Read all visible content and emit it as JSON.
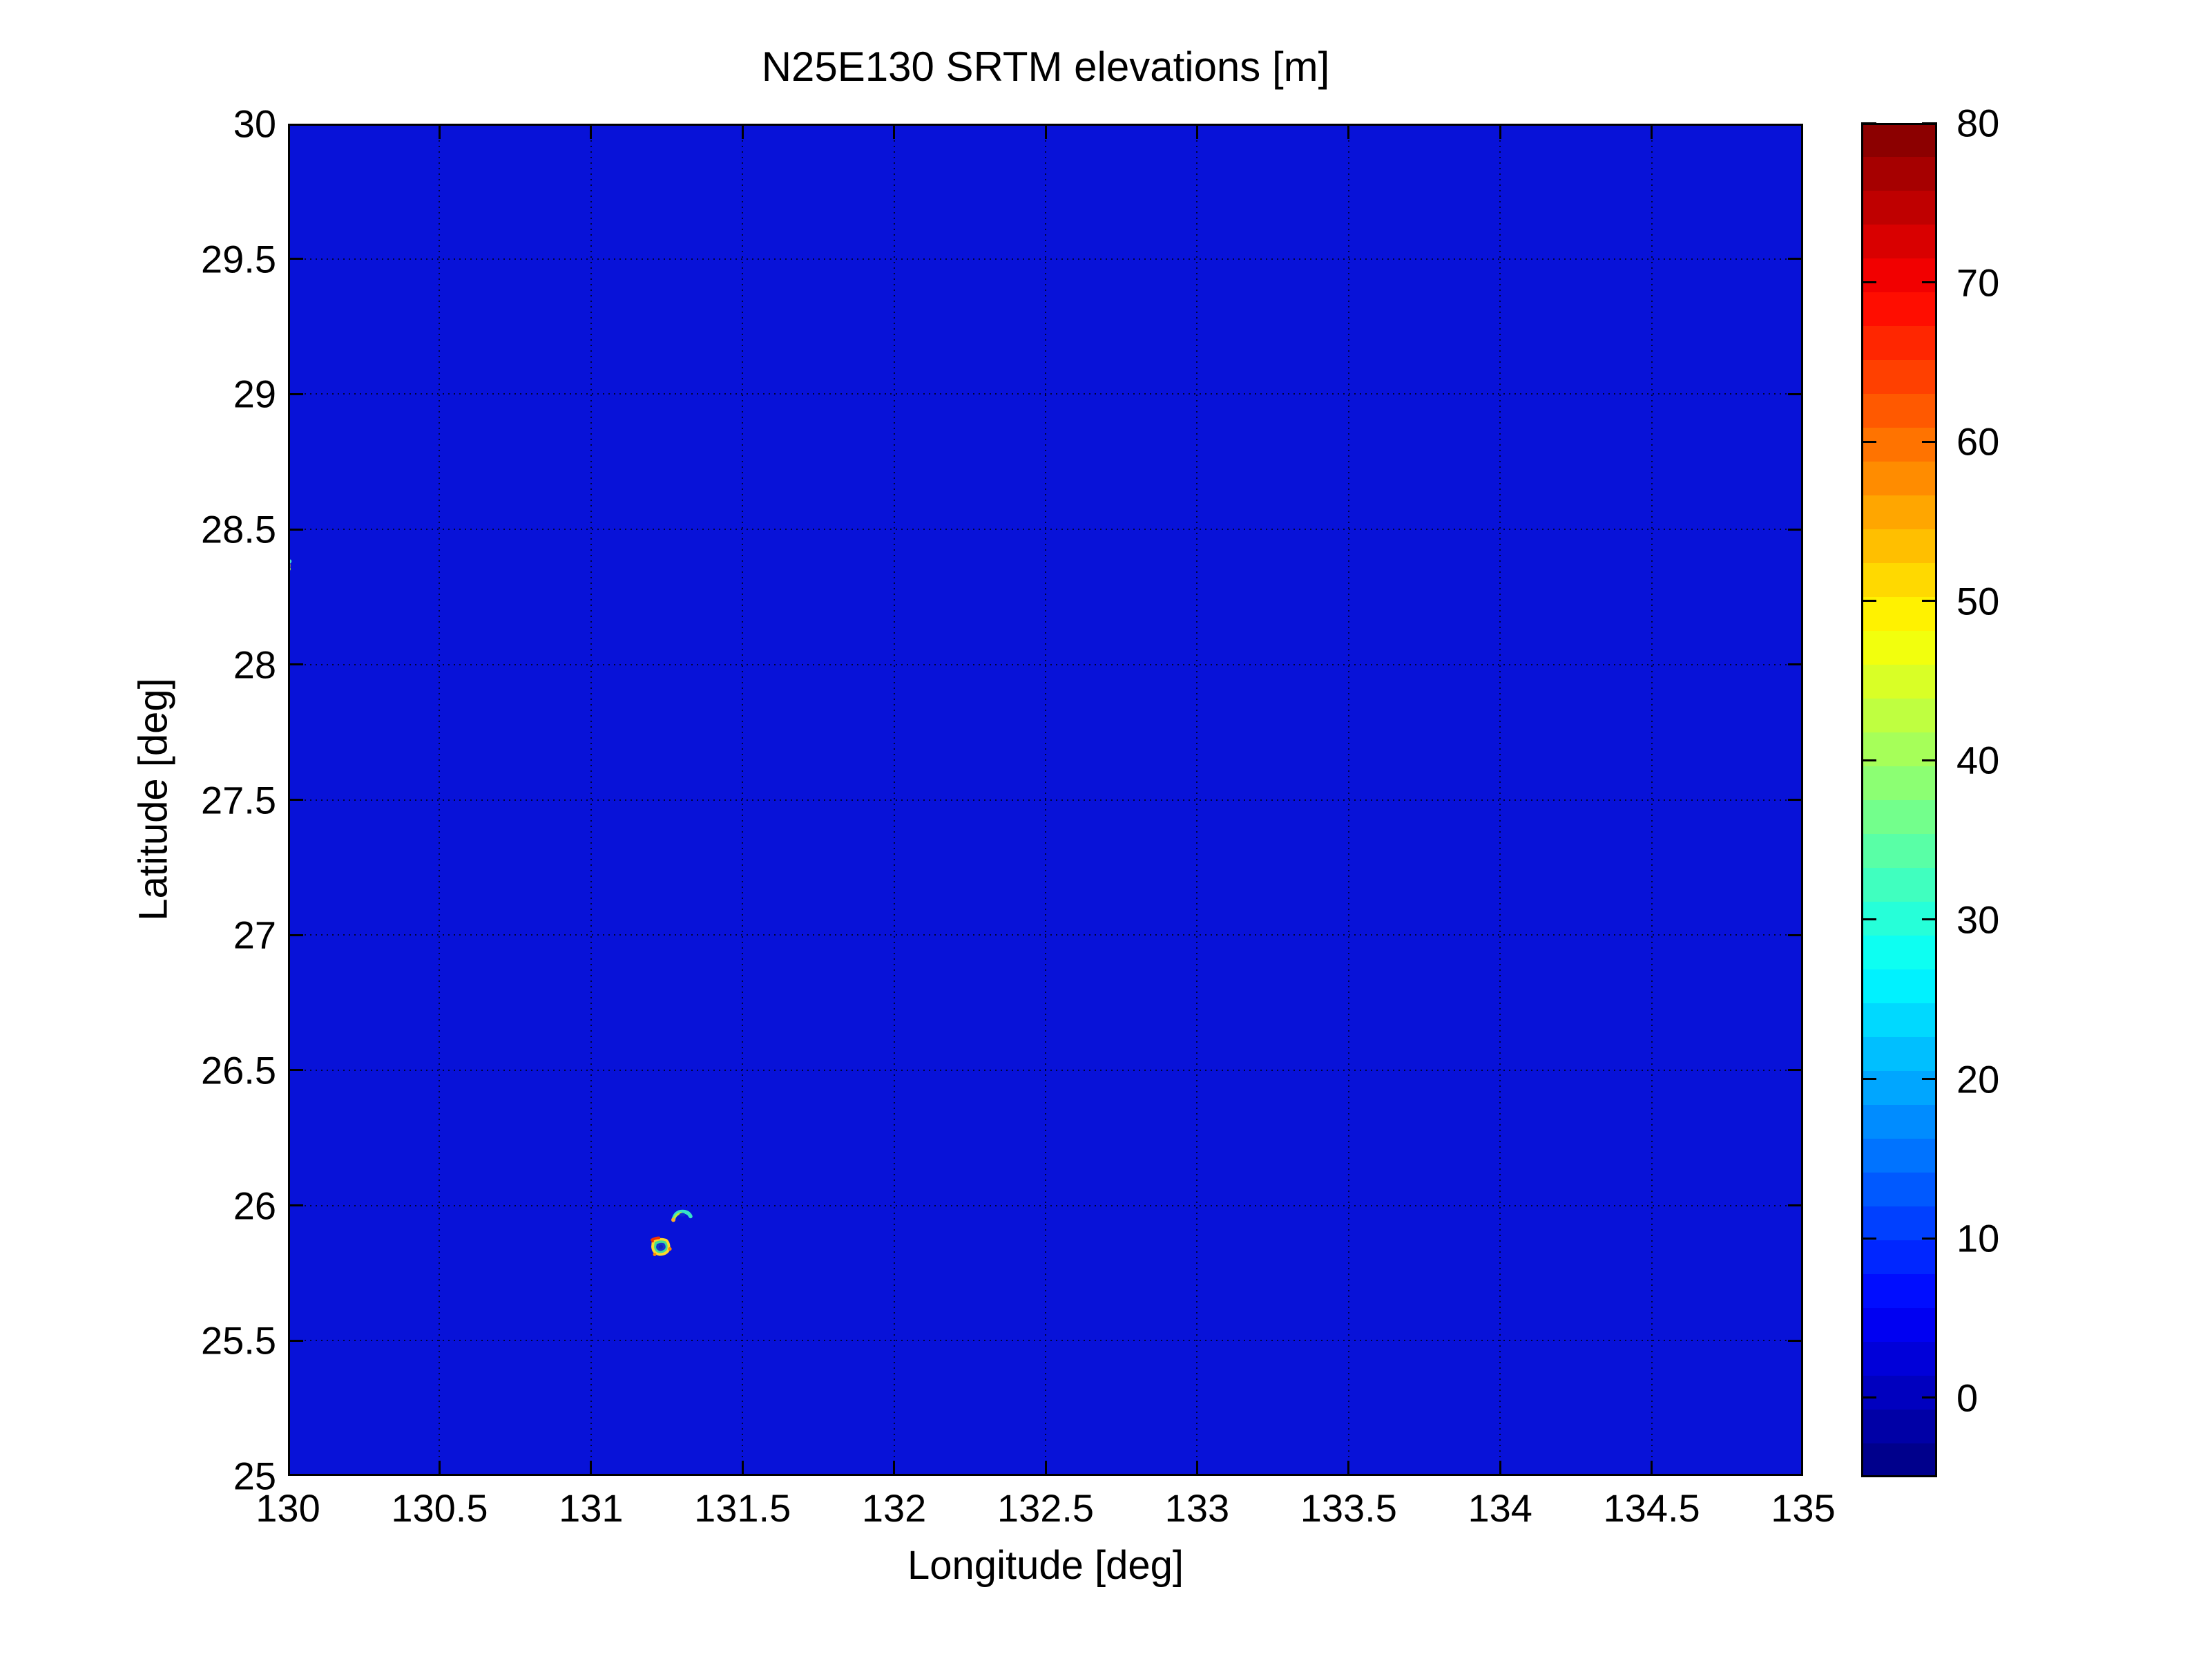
{
  "figure": {
    "title": "N25E130 SRTM elevations [m]",
    "xlabel": "Longitude [deg]",
    "ylabel": "Latitude [deg]",
    "background": "#ffffff"
  },
  "axes": {
    "xlim": [
      130,
      135
    ],
    "ylim": [
      25,
      30
    ],
    "x_ticks": [
      {
        "v": 130,
        "label": "130"
      },
      {
        "v": 130.5,
        "label": "130.5"
      },
      {
        "v": 131,
        "label": "131"
      },
      {
        "v": 131.5,
        "label": "131.5"
      },
      {
        "v": 132,
        "label": "132"
      },
      {
        "v": 132.5,
        "label": "132.5"
      },
      {
        "v": 133,
        "label": "133"
      },
      {
        "v": 133.5,
        "label": "133.5"
      },
      {
        "v": 134,
        "label": "134"
      },
      {
        "v": 134.5,
        "label": "134.5"
      },
      {
        "v": 135,
        "label": "135"
      }
    ],
    "y_ticks": [
      {
        "v": 25,
        "label": "25"
      },
      {
        "v": 25.5,
        "label": "25.5"
      },
      {
        "v": 26,
        "label": "26"
      },
      {
        "v": 26.5,
        "label": "26.5"
      },
      {
        "v": 27,
        "label": "27"
      },
      {
        "v": 27.5,
        "label": "27.5"
      },
      {
        "v": 28,
        "label": "28"
      },
      {
        "v": 28.5,
        "label": "28.5"
      },
      {
        "v": 29,
        "label": "29"
      },
      {
        "v": 29.5,
        "label": "29.5"
      },
      {
        "v": 30,
        "label": "30"
      }
    ],
    "grid_style": "dotted",
    "sea_color": "#0812d8",
    "grid_dot_color": "rgba(0,0,15,0.8)",
    "tick_color": "#000000"
  },
  "colorbar": {
    "colormap": "jet",
    "min": -5,
    "max": 80,
    "bands": 40,
    "ticks": [
      {
        "v": 0,
        "label": "0"
      },
      {
        "v": 10,
        "label": "10"
      },
      {
        "v": 20,
        "label": "20"
      },
      {
        "v": 30,
        "label": "30"
      },
      {
        "v": 40,
        "label": "40"
      },
      {
        "v": 50,
        "label": "50"
      },
      {
        "v": 60,
        "label": "60"
      },
      {
        "v": 70,
        "label": "70"
      },
      {
        "v": 80,
        "label": "80"
      }
    ]
  },
  "chart_data": {
    "type": "heatmap",
    "title": "N25E130 SRTM elevations [m]",
    "xlabel": "Longitude [deg]",
    "ylabel": "Latitude [deg]",
    "xlim": [
      130,
      135
    ],
    "ylim": [
      25,
      30
    ],
    "grid": true,
    "colormap": "jet",
    "color_range_m": [
      -5,
      80
    ],
    "colorbar_ticks_m": [
      0,
      10,
      20,
      30,
      40,
      50,
      60,
      70,
      80
    ],
    "sea_value_m": 0,
    "description": "SRTM 5x5 degree elevation tile N25E130: nearly all open ocean at ~0 m, with two tiny islets near 131.3E/25.9N and one speck clipped at the western edge near 28.36N",
    "features": [
      {
        "id": "islet-crescent",
        "shape": "crescent",
        "lon": 131.3,
        "lat": 25.95,
        "approx_size_deg": 0.055,
        "rim_elevation_m": 30,
        "note": "small crescent-outline islet, cyan-green rim with orange western tip",
        "colors": {
          "rim": "#38e2c6",
          "shade": "#b6ec3c",
          "tip": "#ffae2a",
          "core": "#0d28cf"
        }
      },
      {
        "id": "islet-rim",
        "shape": "rim-blob",
        "lon": 131.23,
        "lat": 25.84,
        "approx_size_deg": 0.065,
        "rim_elevation_m": 55,
        "peak_elevation_m": 75,
        "note": "rounded islet with raised yellow rim, red-orange high spots, low blue interior",
        "colors": {
          "rim": "#ffd92a",
          "accent": "#f03200",
          "accent2": "#ff8a00",
          "inner": "#42dd96",
          "core": "#1733cf",
          "core2": "#1029b4"
        }
      },
      {
        "id": "west-edge-speck",
        "shape": "edge-speck",
        "lon": 130.0,
        "lat": 28.36,
        "approx_size_deg": 0.03,
        "peak_elevation_m": 75,
        "note": "tiny high-elevation speck clipped by the west edge of the tile",
        "colors": {
          "core": "#ee2000",
          "ring": "#ffd21e",
          "fringe": "#3fe2cf",
          "fringe2": "#9ae23c"
        }
      }
    ]
  }
}
